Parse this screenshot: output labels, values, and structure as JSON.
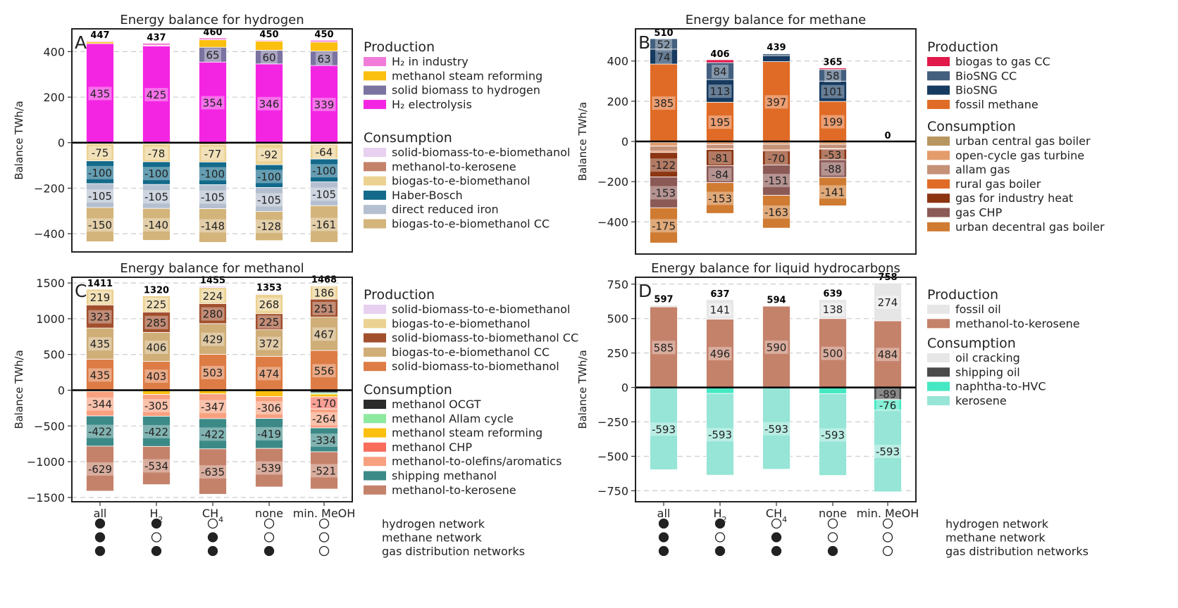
{
  "chart_data": [
    {
      "id": "A",
      "type": "bar",
      "stacked": true,
      "title": "Energy balance for hydrogen",
      "panel_label": "A",
      "ylabel": "Balance TWh/a",
      "ylim": [
        -480,
        500
      ],
      "yticks": [
        400,
        200,
        0,
        -200,
        -400
      ],
      "yticklabels": [
        "400",
        "200",
        "0",
        "−200",
        "−400"
      ],
      "categories": [
        "all",
        "H2",
        "CH4",
        "none",
        "min. MeOH"
      ],
      "totals": [
        447,
        437,
        460,
        450,
        450
      ],
      "production": [
        {
          "name": "H2 electrolysis",
          "color": "#f425e2",
          "values": [
            435,
            425,
            354,
            346,
            339
          ]
        },
        {
          "name": "solid biomass to hydrogen",
          "color": "#7b73a0",
          "values": [
            0,
            0,
            65,
            60,
            63
          ]
        },
        {
          "name": "methanol steam reforming",
          "color": "#fbbf10",
          "values": [
            8,
            3,
            33,
            40,
            40
          ]
        },
        {
          "name": "H2 in industry",
          "color": "#f07bd8",
          "values": [
            4,
            9,
            8,
            4,
            8
          ]
        }
      ],
      "consumption": [
        {
          "name": "solid-biomass-to-e-biomethanol",
          "color": "#e8d0f0",
          "values": [
            -2,
            -3,
            -3,
            -2,
            -4
          ]
        },
        {
          "name": "methanol-to-kerosene",
          "color": "#c5826b",
          "values": [
            -3,
            -3,
            -5,
            -3,
            -4
          ]
        },
        {
          "name": "biogas-to-e-biomethanol",
          "color": "#ecd292",
          "values": [
            -75,
            -78,
            -77,
            -92,
            -64
          ]
        },
        {
          "name": "Haber-Bosch",
          "color": "#136a8a",
          "values": [
            -100,
            -100,
            -100,
            -100,
            -100
          ]
        },
        {
          "name": "direct reduced iron",
          "color": "#b4bfcf",
          "values": [
            -105,
            -105,
            -105,
            -105,
            -105
          ]
        },
        {
          "name": "biogas-to-e-biomethanol CC",
          "color": "#d3b47a",
          "values": [
            -150,
            -140,
            -148,
            -128,
            -161
          ]
        }
      ],
      "legend_production": [
        {
          "name": "H₂ in industry",
          "color": "#f07bd8"
        },
        {
          "name": "methanol steam reforming",
          "color": "#fbbf10"
        },
        {
          "name": "solid biomass to hydrogen",
          "color": "#7b73a0"
        },
        {
          "name": "H₂ electrolysis",
          "color": "#f425e2"
        }
      ],
      "legend_consumption": [
        {
          "name": "solid-biomass-to-e-biomethanol",
          "color": "#e8d0f0"
        },
        {
          "name": "methanol-to-kerosene",
          "color": "#c5826b"
        },
        {
          "name": "biogas-to-e-biomethanol",
          "color": "#ecd292"
        },
        {
          "name": "Haber-Bosch",
          "color": "#136a8a"
        },
        {
          "name": "direct reduced iron",
          "color": "#b4bfcf"
        },
        {
          "name": "biogas-to-e-biomethanol CC",
          "color": "#d3b47a"
        }
      ]
    },
    {
      "id": "B",
      "type": "bar",
      "stacked": true,
      "title": "Energy balance for methane",
      "panel_label": "B",
      "ylabel": "Balance TWh/a",
      "ylim": [
        -560,
        560
      ],
      "yticks": [
        400,
        200,
        0,
        -200,
        -400
      ],
      "yticklabels": [
        "400",
        "200",
        "0",
        "−200",
        "−400"
      ],
      "categories": [
        "all",
        "H2",
        "CH4",
        "none",
        "min. MeOH"
      ],
      "totals": [
        510,
        406,
        439,
        365,
        0
      ],
      "production": [
        {
          "name": "fossil methane",
          "color": "#e06b26",
          "values": [
            385,
            195,
            397,
            199,
            0
          ]
        },
        {
          "name": "BioSNG",
          "color": "#163a60",
          "values": [
            74,
            113,
            30,
            101,
            0
          ]
        },
        {
          "name": "BioSNG CC",
          "color": "#44607f",
          "values": [
            52,
            84,
            9,
            58,
            0
          ]
        },
        {
          "name": "biogas to gas CC",
          "color": "#e2184a",
          "values": [
            0,
            14,
            3,
            7,
            0
          ]
        }
      ],
      "consumption": [
        {
          "name": "urban central gas boiler",
          "color": "#b89660",
          "values": [
            -5,
            -3,
            -4,
            -3,
            0
          ]
        },
        {
          "name": "open-cycle gas turbine",
          "color": "#e39c6c",
          "values": [
            -18,
            -12,
            -10,
            -11,
            0
          ]
        },
        {
          "name": "allam gas",
          "color": "#c59177",
          "values": [
            -26,
            -21,
            -28,
            -22,
            0
          ]
        },
        {
          "name": "rural gas boiler",
          "color": "#e06b26",
          "values": [
            -6,
            -4,
            -5,
            -2,
            0
          ]
        },
        {
          "name": "gas for industry heat",
          "color": "#8c3512",
          "values": [
            -122,
            -81,
            -70,
            -53,
            0
          ]
        },
        {
          "name": "gas CHP",
          "color": "#8c5a56",
          "values": [
            -153,
            -84,
            -151,
            -88,
            0
          ]
        },
        {
          "name": "urban decentral gas boiler",
          "color": "#d07b32",
          "values": [
            -175,
            -153,
            -163,
            -141,
            0
          ]
        }
      ],
      "legend_production": [
        {
          "name": "biogas to gas CC",
          "color": "#e2184a"
        },
        {
          "name": "BioSNG CC",
          "color": "#44607f"
        },
        {
          "name": "BioSNG",
          "color": "#163a60"
        },
        {
          "name": "fossil methane",
          "color": "#e06b26"
        }
      ],
      "legend_consumption": [
        {
          "name": "urban central gas boiler",
          "color": "#b89660"
        },
        {
          "name": "open-cycle gas turbine",
          "color": "#e39c6c"
        },
        {
          "name": "allam gas",
          "color": "#c59177"
        },
        {
          "name": "rural gas boiler",
          "color": "#e06b26"
        },
        {
          "name": "gas for industry heat",
          "color": "#8c3512"
        },
        {
          "name": "gas CHP",
          "color": "#8c5a56"
        },
        {
          "name": "urban decentral gas boiler",
          "color": "#d07b32"
        }
      ]
    },
    {
      "id": "C",
      "type": "bar",
      "stacked": true,
      "title": "Energy balance for methanol",
      "panel_label": "C",
      "ylabel": "Balance TWh/a",
      "ylim": [
        -1560,
        1580
      ],
      "yticks": [
        1500,
        1000,
        500,
        0,
        -500,
        -1000,
        -1500
      ],
      "yticklabels": [
        "1500",
        "1000",
        "500",
        "0",
        "−500",
        "−1000",
        "−1500"
      ],
      "categories": [
        "all",
        "H2",
        "CH4",
        "none",
        "min. MeOH"
      ],
      "totals": [
        1411,
        1320,
        1455,
        1353,
        1468
      ],
      "production": [
        {
          "name": "solid-biomass-to-biomethanol",
          "color": "#dd7c45",
          "values": [
            435,
            403,
            503,
            474,
            556
          ]
        },
        {
          "name": "biogas-to-e-biomethanol CC",
          "color": "#cfae77",
          "values": [
            435,
            406,
            429,
            372,
            467
          ]
        },
        {
          "name": "solid-biomass-to-biomethanol CC",
          "color": "#a14f2d",
          "values": [
            323,
            285,
            280,
            225,
            251
          ]
        },
        {
          "name": "biogas-to-e-biomethanol",
          "color": "#ecd292",
          "values": [
            219,
            225,
            224,
            268,
            186
          ]
        },
        {
          "name": "solid-biomass-to-e-biomethanol",
          "color": "#e8d0f0",
          "values": [
            0,
            0,
            19,
            14,
            8
          ]
        }
      ],
      "consumption": [
        {
          "name": "methanol OCGT",
          "color": "#2b2b2b",
          "values": [
            0,
            0,
            0,
            0,
            -35
          ]
        },
        {
          "name": "methanol Allam cycle",
          "color": "#8ee9a0",
          "values": [
            0,
            0,
            0,
            0,
            -20
          ]
        },
        {
          "name": "methanol steam reforming",
          "color": "#fbbf10",
          "values": [
            -16,
            -59,
            -51,
            -89,
            -38
          ]
        },
        {
          "name": "methanol CHP",
          "color": "#f86c5c",
          "values": [
            0,
            0,
            0,
            0,
            -170
          ]
        },
        {
          "name": "methanol-to-olefins/aromatics",
          "color": "#f8a07f",
          "values": [
            -344,
            -305,
            -347,
            -306,
            -264
          ]
        },
        {
          "name": "shipping methanol",
          "color": "#3c8a87",
          "values": [
            -422,
            -422,
            -422,
            -419,
            -334
          ]
        },
        {
          "name": "methanol-to-kerosene",
          "color": "#c5826b",
          "values": [
            -629,
            -534,
            -635,
            -539,
            -521
          ]
        }
      ],
      "legend_production": [
        {
          "name": "solid-biomass-to-e-biomethanol",
          "color": "#e8d0f0"
        },
        {
          "name": "biogas-to-e-biomethanol",
          "color": "#ecd292"
        },
        {
          "name": "solid-biomass-to-biomethanol CC",
          "color": "#a14f2d"
        },
        {
          "name": "biogas-to-e-biomethanol CC",
          "color": "#cfae77"
        },
        {
          "name": "solid-biomass-to-biomethanol",
          "color": "#dd7c45"
        }
      ],
      "legend_consumption": [
        {
          "name": "methanol OCGT",
          "color": "#2b2b2b"
        },
        {
          "name": "methanol Allam cycle",
          "color": "#8ee9a0"
        },
        {
          "name": "methanol steam reforming",
          "color": "#fbbf10"
        },
        {
          "name": "methanol CHP",
          "color": "#f86c5c"
        },
        {
          "name": "methanol-to-olefins/aromatics",
          "color": "#f8a07f"
        },
        {
          "name": "shipping methanol",
          "color": "#3c8a87"
        },
        {
          "name": "methanol-to-kerosene",
          "color": "#c5826b"
        }
      ]
    },
    {
      "id": "D",
      "type": "bar",
      "stacked": true,
      "title": "Energy balance for liquid hydrocarbons",
      "panel_label": "D",
      "ylabel": "Balance TWh/a",
      "ylim": [
        -830,
        800
      ],
      "yticks": [
        750,
        500,
        250,
        0,
        -250,
        -500,
        -750
      ],
      "yticklabels": [
        "750",
        "500",
        "250",
        "0",
        "−250",
        "−500",
        "−750"
      ],
      "categories": [
        "all",
        "H2",
        "CH4",
        "none",
        "min. MeOH"
      ],
      "totals": [
        597,
        637,
        594,
        639,
        758
      ],
      "production": [
        {
          "name": "methanol-to-kerosene",
          "color": "#c5826b",
          "values": [
            585,
            496,
            590,
            500,
            484
          ]
        },
        {
          "name": "fossil oil",
          "color": "#e6e6e6",
          "values": [
            12,
            141,
            4,
            138,
            274
          ]
        }
      ],
      "consumption": [
        {
          "name": "oil cracking",
          "color": "#e6e6e6",
          "values": [
            0,
            0,
            0,
            0,
            0
          ]
        },
        {
          "name": "shipping oil",
          "color": "#4a4a4a",
          "values": [
            0,
            0,
            0,
            0,
            -89
          ]
        },
        {
          "name": "naphtha-to-HVC",
          "color": "#45e8c2",
          "values": [
            -4,
            -44,
            -1,
            -46,
            -76
          ]
        },
        {
          "name": "kerosene",
          "color": "#96e5d6",
          "values": [
            -593,
            -593,
            -593,
            -593,
            -593
          ]
        }
      ],
      "legend_production": [
        {
          "name": "fossil oil",
          "color": "#e6e6e6"
        },
        {
          "name": "methanol-to-kerosene",
          "color": "#c5826b"
        }
      ],
      "legend_consumption": [
        {
          "name": "oil cracking",
          "color": "#e6e6e6"
        },
        {
          "name": "shipping oil",
          "color": "#4a4a4a"
        },
        {
          "name": "naphtha-to-HVC",
          "color": "#45e8c2"
        },
        {
          "name": "kerosene",
          "color": "#96e5d6"
        }
      ]
    }
  ],
  "legend_headers": {
    "production": "Production",
    "consumption": "Consumption"
  },
  "scenario_labels": [
    {
      "base": "all",
      "sub": ""
    },
    {
      "base": "H",
      "sub": "2"
    },
    {
      "base": "CH",
      "sub": "4"
    },
    {
      "base": "none",
      "sub": ""
    },
    {
      "base": "min. MeOH",
      "sub": ""
    }
  ],
  "network_matrix": {
    "rows": [
      "hydrogen network",
      "methane network",
      "gas distribution networks"
    ],
    "values": [
      [
        true,
        true,
        false,
        false,
        false
      ],
      [
        true,
        false,
        true,
        false,
        false
      ],
      [
        true,
        true,
        true,
        true,
        false
      ]
    ]
  }
}
